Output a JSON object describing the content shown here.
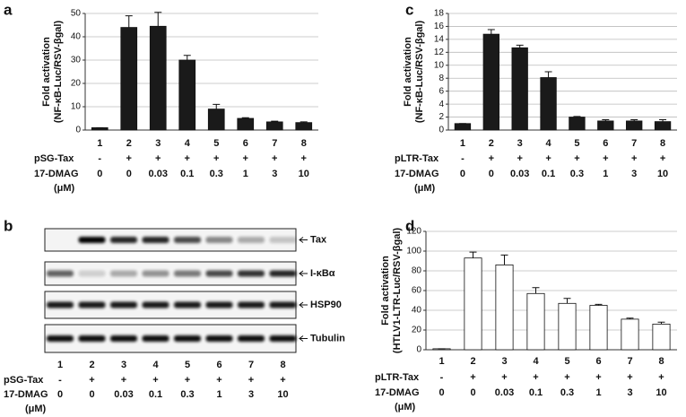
{
  "chart_data": [
    {
      "type": "bar",
      "panel": "a",
      "ylabel": [
        "Fold activation",
        "(NF-κB-Luc/RSV-βgal)"
      ],
      "categories": [
        "1",
        "2",
        "3",
        "4",
        "5",
        "6",
        "7",
        "8"
      ],
      "values": [
        1,
        44,
        44.5,
        30,
        9,
        5,
        3.5,
        3.2
      ],
      "errors": [
        0,
        5,
        6,
        2,
        2,
        0.3,
        0.3,
        0.3
      ],
      "color": "#1a1a1a",
      "ylim": [
        0,
        50
      ],
      "yticks": [
        0,
        10,
        20,
        30,
        40,
        50
      ],
      "grid": true,
      "rows": [
        {
          "label": "pSG-Tax",
          "cells": [
            "-",
            "+",
            "+",
            "+",
            "+",
            "+",
            "+",
            "+"
          ]
        },
        {
          "label": "17-DMAG",
          "unit": "(μM)",
          "cells": [
            "0",
            "0",
            "0.03",
            "0.1",
            "0.3",
            "1",
            "3",
            "10"
          ]
        }
      ]
    },
    {
      "type": "bar",
      "panel": "c",
      "ylabel": [
        "Fold activation",
        "(NF-κB-Luc/RSV-βgal)"
      ],
      "categories": [
        "1",
        "2",
        "3",
        "4",
        "5",
        "6",
        "7",
        "8"
      ],
      "values": [
        1,
        14.8,
        12.7,
        8.1,
        2.0,
        1.4,
        1.4,
        1.3
      ],
      "errors": [
        0,
        0.7,
        0.4,
        0.9,
        0.1,
        0.2,
        0.2,
        0.3
      ],
      "color": "#1a1a1a",
      "ylim": [
        0,
        18
      ],
      "yticks": [
        0,
        2,
        4,
        6,
        8,
        10,
        12,
        14,
        16,
        18
      ],
      "grid": true,
      "rows": [
        {
          "label": "pLTR-Tax",
          "cells": [
            "-",
            "+",
            "+",
            "+",
            "+",
            "+",
            "+",
            "+"
          ]
        },
        {
          "label": "17-DMAG",
          "unit": "(μM)",
          "cells": [
            "0",
            "0",
            "0.03",
            "0.1",
            "0.3",
            "1",
            "3",
            "10"
          ]
        }
      ]
    },
    {
      "type": "bar",
      "panel": "d",
      "ylabel": [
        "Fold activation",
        "(HTLV1-LTR-Luc/RSV-βgal)"
      ],
      "categories": [
        "1",
        "2",
        "3",
        "4",
        "5",
        "6",
        "7",
        "8"
      ],
      "values": [
        1,
        93,
        86,
        57,
        47,
        45,
        31,
        26
      ],
      "errors": [
        0,
        6,
        10,
        6,
        5,
        1,
        1,
        2
      ],
      "color": "#ffffff",
      "ylim": [
        0,
        120
      ],
      "yticks": [
        0,
        20,
        40,
        60,
        80,
        100,
        120
      ],
      "grid": true,
      "rows": [
        {
          "label": "pLTR-Tax",
          "cells": [
            "-",
            "+",
            "+",
            "+",
            "+",
            "+",
            "+",
            "+"
          ]
        },
        {
          "label": "17-DMAG",
          "unit": "(μM)",
          "cells": [
            "0",
            "0",
            "0.03",
            "0.1",
            "0.3",
            "1",
            "3",
            "10"
          ]
        }
      ]
    }
  ],
  "blot": {
    "panel": "b",
    "bands": [
      "Tax",
      "I-κBα",
      "HSP90",
      "Tubulin"
    ],
    "lanes": [
      "1",
      "2",
      "3",
      "4",
      "5",
      "6",
      "7",
      "8"
    ],
    "rows": [
      {
        "label": "pSG-Tax",
        "cells": [
          "-",
          "+",
          "+",
          "+",
          "+",
          "+",
          "+",
          "+"
        ]
      },
      {
        "label": "17-DMAG",
        "unit": "(μM)",
        "cells": [
          "0",
          "0",
          "0.03",
          "0.1",
          "0.3",
          "1",
          "3",
          "10"
        ]
      }
    ]
  }
}
